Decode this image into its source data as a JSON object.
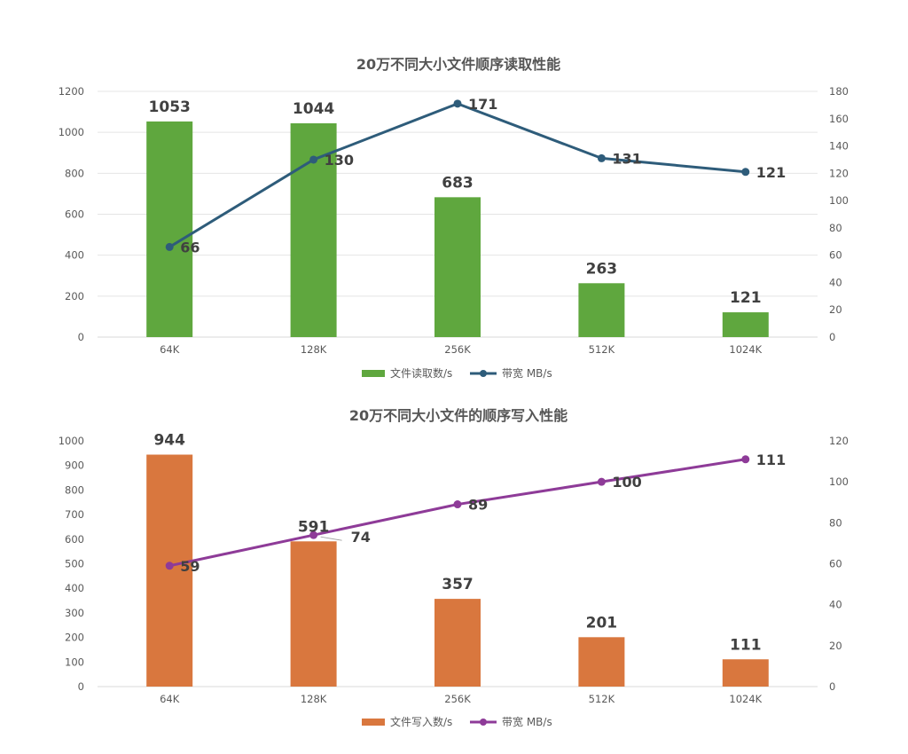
{
  "chart_data": [
    {
      "type": "bar",
      "title": "20万不同大小文件顺序读取性能",
      "categories": [
        "64K",
        "128K",
        "256K",
        "512K",
        "1024K"
      ],
      "ylim": [
        0,
        1200
      ],
      "yticks": [
        "0",
        "200",
        "400",
        "600",
        "800",
        "1000",
        "1200"
      ],
      "y2lim": [
        0,
        180
      ],
      "y2ticks": [
        "0",
        "20",
        "40",
        "60",
        "80",
        "100",
        "120",
        "140",
        "160",
        "180"
      ],
      "grid": true,
      "legend_position": "bottom",
      "series": [
        {
          "name": "文件读取数/s",
          "kind": "bar",
          "axis": "left",
          "color": "#5fa73e",
          "values": [
            1053,
            1044,
            683,
            263,
            121
          ],
          "labels": [
            "1053",
            "1044",
            "683",
            "263",
            "121"
          ]
        },
        {
          "name": "带宽 MB/s",
          "kind": "line",
          "axis": "right",
          "color": "#2e5c7a",
          "values": [
            66,
            130,
            171,
            131,
            121
          ],
          "labels": [
            "66",
            "130",
            "171",
            "131",
            "121"
          ]
        }
      ]
    },
    {
      "type": "bar",
      "title": "20万不同大小文件的顺序写入性能",
      "categories": [
        "64K",
        "128K",
        "256K",
        "512K",
        "1024K"
      ],
      "ylim": [
        0,
        1000
      ],
      "yticks": [
        "0",
        "100",
        "200",
        "300",
        "400",
        "500",
        "600",
        "700",
        "800",
        "900",
        "1000"
      ],
      "y2lim": [
        0,
        120
      ],
      "y2ticks": [
        "0",
        "20",
        "40",
        "60",
        "80",
        "100",
        "120"
      ],
      "grid": false,
      "legend_position": "bottom",
      "series": [
        {
          "name": "文件写入数/s",
          "kind": "bar",
          "axis": "left",
          "color": "#d9773e",
          "values": [
            944,
            591,
            357,
            201,
            111
          ],
          "labels": [
            "944",
            "591",
            "357",
            "201",
            "111"
          ]
        },
        {
          "name": "带宽 MB/s",
          "kind": "line",
          "axis": "right",
          "color": "#8e3b98",
          "values": [
            59,
            74,
            89,
            100,
            111
          ],
          "labels": [
            "59",
            "74",
            "89",
            "100",
            "111"
          ]
        }
      ]
    }
  ]
}
